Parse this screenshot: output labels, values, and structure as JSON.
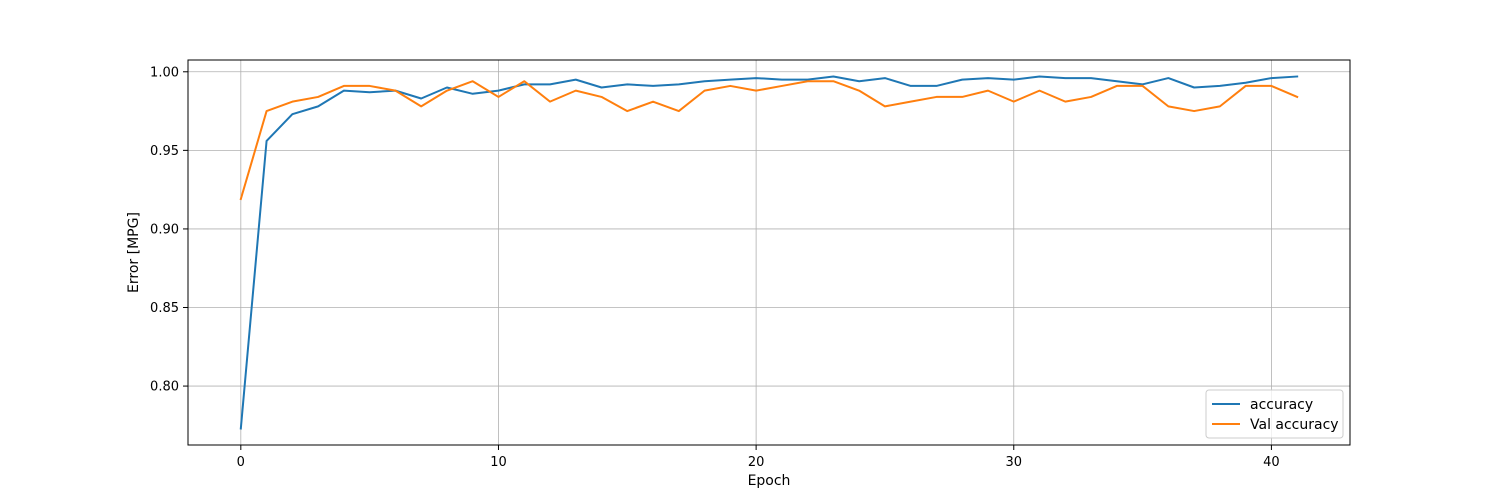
{
  "chart_data": {
    "type": "line",
    "xlabel": "Epoch",
    "ylabel": "Error [MPG]",
    "xlim": [
      -2.05,
      43.05
    ],
    "ylim": [
      0.7625,
      1.0075
    ],
    "xticks": [
      0,
      10,
      20,
      30,
      40
    ],
    "yticks": [
      0.8,
      0.85,
      0.9,
      0.95,
      1.0
    ],
    "xtick_labels": [
      "0",
      "10",
      "20",
      "30",
      "40"
    ],
    "ytick_labels": [
      "0.80",
      "0.85",
      "0.90",
      "0.95",
      "1.00"
    ],
    "grid": true,
    "legend_position": "bottom-right",
    "x": [
      0,
      1,
      2,
      3,
      4,
      5,
      6,
      7,
      8,
      9,
      10,
      11,
      12,
      13,
      14,
      15,
      16,
      17,
      18,
      19,
      20,
      21,
      22,
      23,
      24,
      25,
      26,
      27,
      28,
      29,
      30,
      31,
      32,
      33,
      34,
      35,
      36,
      37,
      38,
      39,
      40,
      41
    ],
    "series": [
      {
        "name": "accuracy",
        "color": "#1f77b4",
        "values": [
          0.773,
          0.956,
          0.973,
          0.978,
          0.988,
          0.987,
          0.988,
          0.983,
          0.99,
          0.986,
          0.988,
          0.992,
          0.992,
          0.995,
          0.99,
          0.992,
          0.991,
          0.992,
          0.994,
          0.995,
          0.996,
          0.995,
          0.995,
          0.997,
          0.994,
          0.996,
          0.991,
          0.991,
          0.995,
          0.996,
          0.995,
          0.997,
          0.996,
          0.996,
          0.994,
          0.992,
          0.996,
          0.99,
          0.991,
          0.993,
          0.996,
          0.997
        ]
      },
      {
        "name": "Val accuracy",
        "color": "#ff7f0e",
        "values": [
          0.919,
          0.975,
          0.981,
          0.984,
          0.991,
          0.991,
          0.988,
          0.978,
          0.988,
          0.994,
          0.984,
          0.994,
          0.981,
          0.988,
          0.984,
          0.975,
          0.981,
          0.975,
          0.988,
          0.991,
          0.988,
          0.991,
          0.994,
          0.994,
          0.988,
          0.978,
          0.981,
          0.984,
          0.984,
          0.988,
          0.981,
          0.988,
          0.981,
          0.984,
          0.991,
          0.991,
          0.978,
          0.975,
          0.978,
          0.991,
          0.991,
          0.984
        ]
      }
    ]
  }
}
